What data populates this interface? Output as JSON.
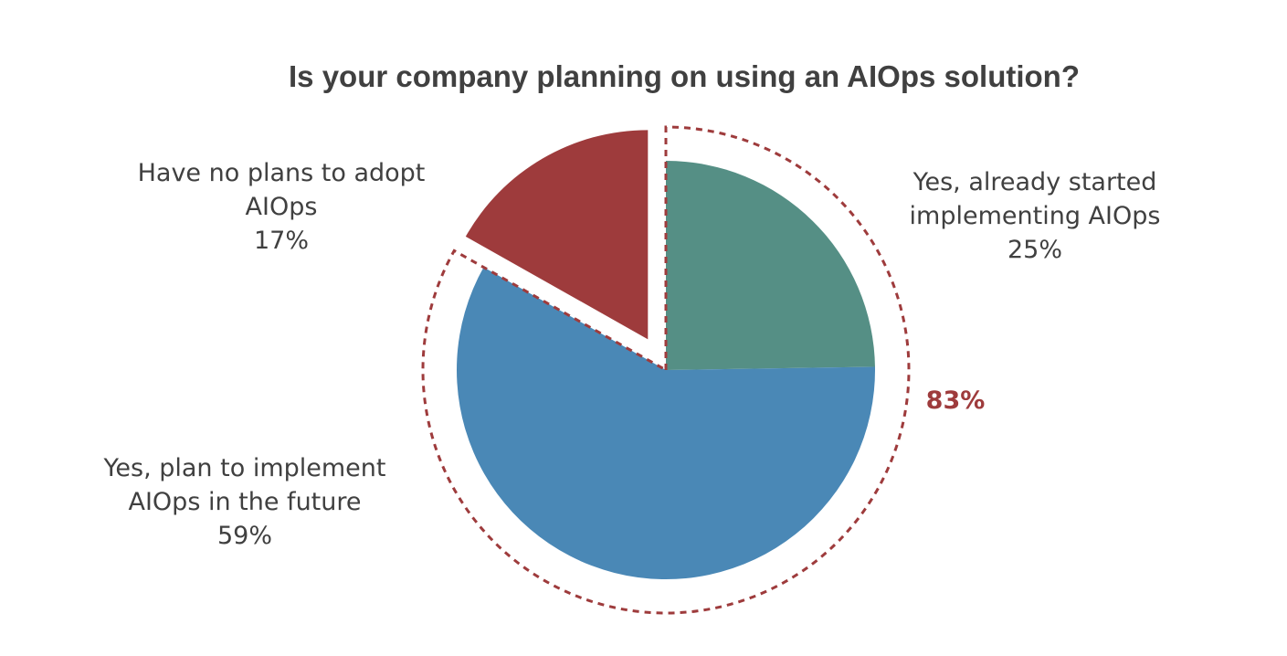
{
  "chart_data": {
    "type": "pie",
    "title": "Is your company planning on using an AIOps solution?",
    "slices": [
      {
        "label_lines": [
          "Yes, already started",
          "implementing AIOps"
        ],
        "value": 25,
        "value_label": "25%",
        "color": "#558f85",
        "exploded": false
      },
      {
        "label_lines": [
          "Yes, plan to implement",
          "AIOps in the future"
        ],
        "value": 59,
        "value_label": "59%",
        "color": "#4a88b6",
        "exploded": false
      },
      {
        "label_lines": [
          "Have no plans to adopt",
          "AIOps"
        ],
        "value": 17,
        "value_label": "17%",
        "color": "#9e3b3c",
        "exploded": true
      }
    ],
    "group_highlight": {
      "label": "83%",
      "includes": [
        "Yes, already started implementing AIOps",
        "Yes, plan to implement AIOps in the future"
      ],
      "style": "dashed-outline",
      "color": "#9e3b3c"
    },
    "start_angle": "12 o'clock",
    "direction": "clockwise",
    "legend": "none"
  }
}
